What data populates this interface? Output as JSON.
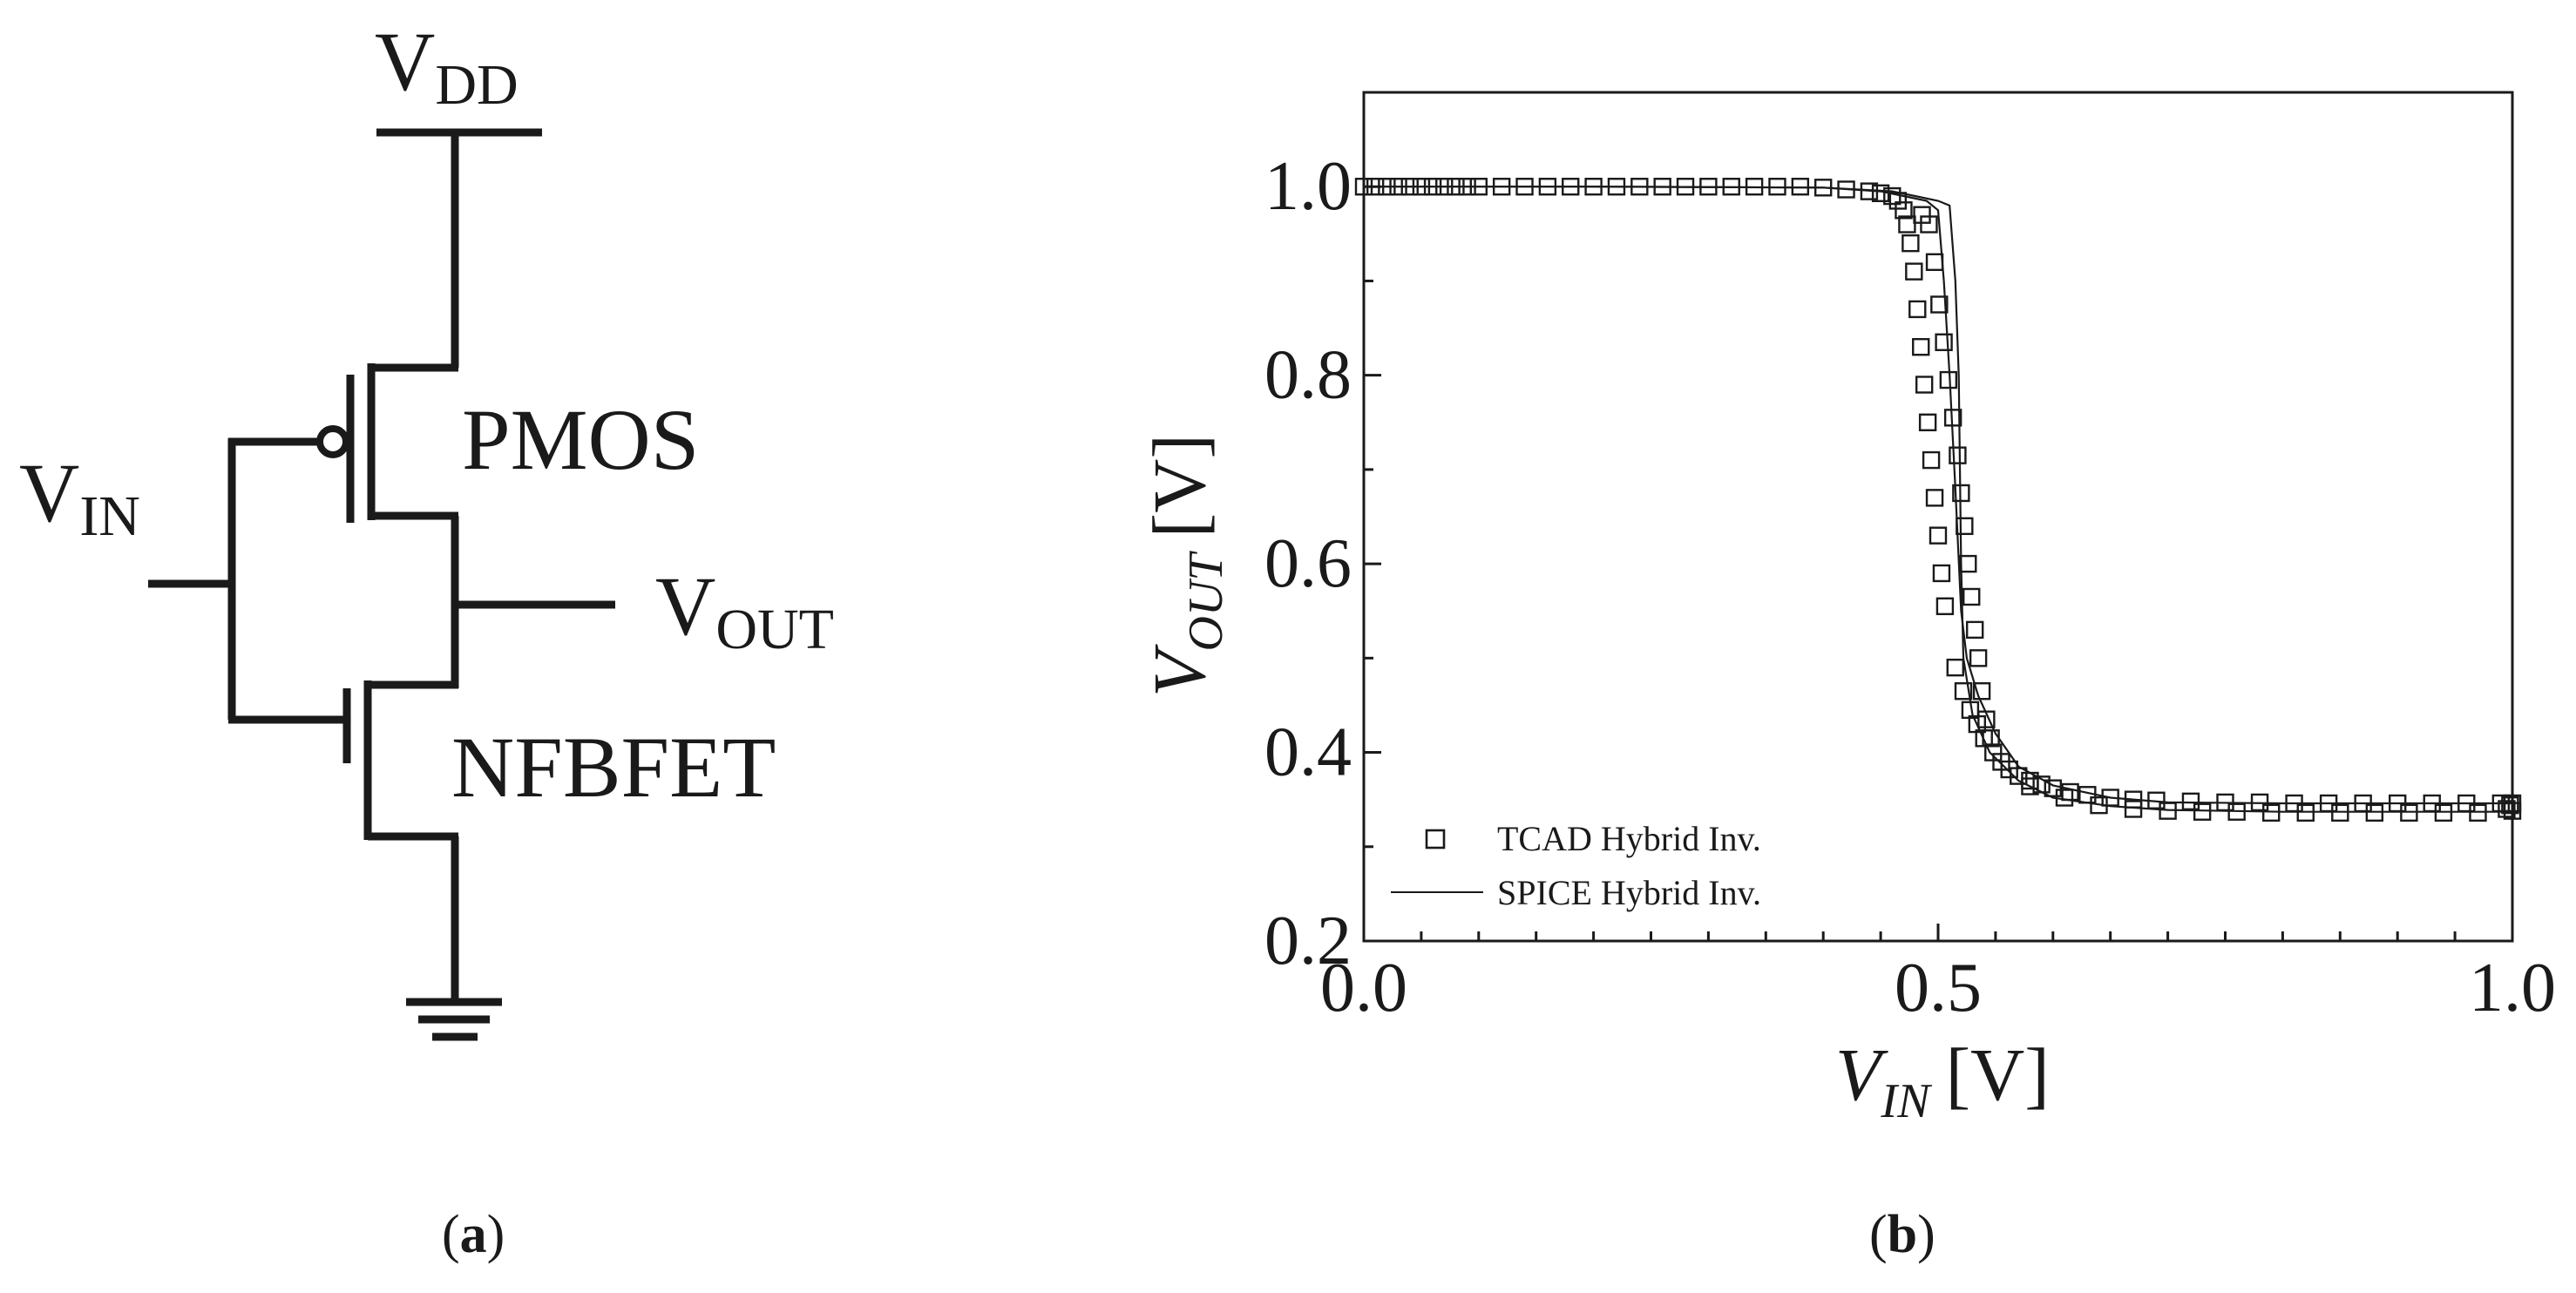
{
  "circuit": {
    "vdd": {
      "main": "V",
      "sub": "DD"
    },
    "vin": {
      "main": "V",
      "sub": "IN"
    },
    "vout": {
      "main": "V",
      "sub": "OUT"
    },
    "pmos_label": "PMOS",
    "nfbfet_label": "NFBFET"
  },
  "panels": {
    "a": {
      "open": "(",
      "letter": "a",
      "close": ")"
    },
    "b": {
      "open": "(",
      "letter": "b",
      "close": ")"
    }
  },
  "chart_data": {
    "type": "scatter",
    "xlabel": {
      "main": "V",
      "sub": "IN",
      "unit": "[V]"
    },
    "ylabel": {
      "main": "V",
      "sub": "OUT",
      "unit": "[V]"
    },
    "xlim": [
      0.0,
      1.0
    ],
    "ylim": [
      0.2,
      1.1
    ],
    "xticks": [
      0.0,
      0.5,
      1.0
    ],
    "xtick_labels": [
      "0.0",
      "0.5",
      "1.0"
    ],
    "yticks": [
      0.2,
      0.4,
      0.6,
      0.8,
      1.0
    ],
    "ytick_labels": [
      "0.2",
      "0.4",
      "0.6",
      "0.8",
      "1.0"
    ],
    "legend_position": "bottom-left",
    "grid": false,
    "series": [
      {
        "name": "TCAD Hybrid Inv.",
        "style": "open-square",
        "points": [
          [
            0.0,
            1.0
          ],
          [
            0.01,
            1.0
          ],
          [
            0.02,
            1.0
          ],
          [
            0.03,
            1.0
          ],
          [
            0.04,
            1.0
          ],
          [
            0.05,
            1.0
          ],
          [
            0.06,
            1.0
          ],
          [
            0.07,
            1.0
          ],
          [
            0.08,
            1.0
          ],
          [
            0.09,
            1.0
          ],
          [
            0.1,
            1.0
          ],
          [
            0.12,
            1.0
          ],
          [
            0.14,
            1.0
          ],
          [
            0.16,
            1.0
          ],
          [
            0.18,
            1.0
          ],
          [
            0.2,
            1.0
          ],
          [
            0.22,
            1.0
          ],
          [
            0.24,
            1.0
          ],
          [
            0.26,
            1.0
          ],
          [
            0.28,
            1.0
          ],
          [
            0.3,
            1.0
          ],
          [
            0.32,
            1.0
          ],
          [
            0.34,
            1.0
          ],
          [
            0.36,
            1.0
          ],
          [
            0.38,
            1.0
          ],
          [
            0.4,
            0.999
          ],
          [
            0.42,
            0.997
          ],
          [
            0.44,
            0.995
          ],
          [
            0.45,
            0.993
          ],
          [
            0.46,
            0.99
          ],
          [
            0.465,
            0.985
          ],
          [
            0.47,
            0.975
          ],
          [
            0.473,
            0.96
          ],
          [
            0.476,
            0.94
          ],
          [
            0.479,
            0.91
          ],
          [
            0.482,
            0.87
          ],
          [
            0.485,
            0.83
          ],
          [
            0.488,
            0.79
          ],
          [
            0.491,
            0.75
          ],
          [
            0.494,
            0.71
          ],
          [
            0.497,
            0.67
          ],
          [
            0.5,
            0.63
          ],
          [
            0.503,
            0.59
          ],
          [
            0.506,
            0.555
          ],
          [
            0.486,
            0.97
          ],
          [
            0.492,
            0.96
          ],
          [
            0.497,
            0.92
          ],
          [
            0.501,
            0.875
          ],
          [
            0.505,
            0.835
          ],
          [
            0.509,
            0.795
          ],
          [
            0.513,
            0.755
          ],
          [
            0.517,
            0.715
          ],
          [
            0.52,
            0.675
          ],
          [
            0.523,
            0.64
          ],
          [
            0.526,
            0.6
          ],
          [
            0.529,
            0.565
          ],
          [
            0.532,
            0.53
          ],
          [
            0.535,
            0.5
          ],
          [
            0.538,
            0.465
          ],
          [
            0.542,
            0.435
          ],
          [
            0.546,
            0.415
          ],
          [
            0.515,
            0.49
          ],
          [
            0.522,
            0.465
          ],
          [
            0.528,
            0.445
          ],
          [
            0.534,
            0.43
          ],
          [
            0.54,
            0.415
          ],
          [
            0.548,
            0.4
          ],
          [
            0.555,
            0.39
          ],
          [
            0.562,
            0.382
          ],
          [
            0.57,
            0.375
          ],
          [
            0.58,
            0.37
          ],
          [
            0.59,
            0.366
          ],
          [
            0.6,
            0.362
          ],
          [
            0.615,
            0.358
          ],
          [
            0.63,
            0.355
          ],
          [
            0.65,
            0.352
          ],
          [
            0.67,
            0.35
          ],
          [
            0.69,
            0.349
          ],
          [
            0.72,
            0.348
          ],
          [
            0.75,
            0.347
          ],
          [
            0.78,
            0.347
          ],
          [
            0.81,
            0.346
          ],
          [
            0.84,
            0.346
          ],
          [
            0.87,
            0.346
          ],
          [
            0.9,
            0.346
          ],
          [
            0.93,
            0.346
          ],
          [
            0.96,
            0.346
          ],
          [
            0.99,
            0.346
          ],
          [
            1.0,
            0.346
          ],
          [
            0.58,
            0.364
          ],
          [
            0.61,
            0.352
          ],
          [
            0.64,
            0.344
          ],
          [
            0.67,
            0.34
          ],
          [
            0.7,
            0.338
          ],
          [
            0.73,
            0.337
          ],
          [
            0.76,
            0.337
          ],
          [
            0.79,
            0.336
          ],
          [
            0.82,
            0.336
          ],
          [
            0.85,
            0.336
          ],
          [
            0.88,
            0.336
          ],
          [
            0.91,
            0.336
          ],
          [
            0.94,
            0.336
          ],
          [
            0.97,
            0.336
          ],
          [
            0.995,
            0.34
          ],
          [
            0.998,
            0.344
          ],
          [
            1.0,
            0.338
          ]
        ]
      },
      {
        "name": "SPICE Hybrid Inv.",
        "style": "thin-line",
        "lines": [
          [
            [
              0.0,
              1.0
            ],
            [
              0.2,
              1.0
            ],
            [
              0.4,
              0.999
            ],
            [
              0.45,
              0.995
            ],
            [
              0.47,
              0.99
            ],
            [
              0.49,
              0.985
            ],
            [
              0.5,
              0.975
            ],
            [
              0.505,
              0.9
            ],
            [
              0.51,
              0.8
            ],
            [
              0.515,
              0.68
            ],
            [
              0.52,
              0.55
            ],
            [
              0.525,
              0.5
            ],
            [
              0.535,
              0.46
            ],
            [
              0.55,
              0.42
            ],
            [
              0.57,
              0.385
            ],
            [
              0.6,
              0.365
            ],
            [
              0.65,
              0.352
            ],
            [
              0.7,
              0.347
            ],
            [
              0.8,
              0.346
            ],
            [
              0.9,
              0.346
            ],
            [
              1.0,
              0.346
            ]
          ],
          [
            [
              0.0,
              1.0
            ],
            [
              0.2,
              1.0
            ],
            [
              0.4,
              0.999
            ],
            [
              0.46,
              0.995
            ],
            [
              0.48,
              0.99
            ],
            [
              0.5,
              0.985
            ],
            [
              0.51,
              0.98
            ],
            [
              0.515,
              0.9
            ],
            [
              0.518,
              0.8
            ],
            [
              0.52,
              0.6
            ],
            [
              0.522,
              0.5
            ],
            [
              0.53,
              0.44
            ],
            [
              0.545,
              0.4
            ],
            [
              0.57,
              0.37
            ],
            [
              0.6,
              0.352
            ],
            [
              0.65,
              0.343
            ],
            [
              0.7,
              0.339
            ],
            [
              0.8,
              0.337
            ],
            [
              0.9,
              0.337
            ],
            [
              1.0,
              0.337
            ]
          ]
        ]
      }
    ]
  }
}
